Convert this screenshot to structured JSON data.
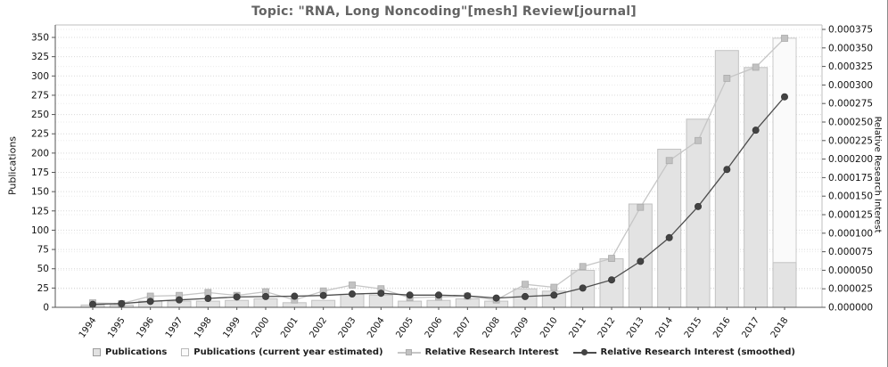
{
  "title": "Topic: \"RNA, Long Noncoding\"[mesh] Review[journal]",
  "axes": {
    "left_title": "Publications",
    "right_title": "Relative Research Interest"
  },
  "legend": {
    "publications_label": "Publications",
    "estimated_label": "Publications (current year estimated)",
    "rri_label": "Relative Research Interest",
    "rri_smoothed_label": "Relative Research Interest (smoothed)"
  },
  "colors": {
    "title_text": "#636363",
    "bar_fill": "#e3e3e3",
    "bar_stroke": "#c2c2c2",
    "estimated_bar_fill": "#fafafa",
    "estimated_bar_stroke": "#c9c9c9",
    "raw_line": "#c6c6c6",
    "raw_marker": "#c2c2c2",
    "smoothed_line": "#4d4d4d",
    "smoothed_marker": "#434343",
    "grid_left": "#d9d9d9",
    "grid_right": "#ebebeb",
    "axis_dark": "#555555",
    "axis_light": "#bfbfbf",
    "tick_text": "#111111"
  },
  "chart_data": {
    "type": "bar",
    "title": "Topic: \"RNA, Long Noncoding\"[mesh] Review[journal]",
    "categories": [
      "1994",
      "1995",
      "1996",
      "1997",
      "1998",
      "1999",
      "2000",
      "2001",
      "2002",
      "2003",
      "2004",
      "2005",
      "2006",
      "2007",
      "2008",
      "2009",
      "2010",
      "2011",
      "2012",
      "2013",
      "2014",
      "2015",
      "2016",
      "2017",
      "2018"
    ],
    "series": [
      {
        "name": "Publications",
        "type": "bar",
        "axis": "left",
        "values": [
          3,
          3,
          8,
          8,
          8,
          9,
          11,
          6,
          9,
          17,
          16,
          8,
          9,
          11,
          8,
          24,
          21,
          48,
          63,
          134,
          205,
          244,
          333,
          311,
          349
        ],
        "last_year_estimated": true,
        "last_year_actual_to_date": 58
      },
      {
        "name": "Relative Research Interest",
        "type": "line",
        "axis": "right",
        "marker": "square",
        "values": [
          6e-06,
          5e-06,
          1.5e-05,
          1.6e-05,
          2e-05,
          1.6e-05,
          2.1e-05,
          1e-05,
          2.2e-05,
          3e-05,
          2.5e-05,
          1.3e-05,
          1.4e-05,
          1.5e-05,
          1e-05,
          3.1e-05,
          2.7e-05,
          5.5e-05,
          6.6e-05,
          0.000135,
          0.000198,
          0.000225,
          0.000309,
          0.000324,
          0.000363
        ]
      },
      {
        "name": "Relative Research Interest (smoothed)",
        "type": "line",
        "axis": "right",
        "marker": "circle",
        "values": [
          4e-06,
          5e-06,
          8e-06,
          1e-05,
          1.2e-05,
          1.4e-05,
          1.45e-05,
          1.5e-05,
          1.6e-05,
          1.8e-05,
          1.9e-05,
          1.65e-05,
          1.65e-05,
          1.55e-05,
          1.25e-05,
          1.45e-05,
          1.65e-05,
          2.6e-05,
          3.7e-05,
          6.2e-05,
          9.4e-05,
          0.000136,
          0.000186,
          0.000239,
          0.000284
        ]
      }
    ],
    "left_axis": {
      "label": "Publications",
      "min": 0,
      "max": 350,
      "tick_step": 25
    },
    "right_axis": {
      "label": "Relative Research Interest",
      "min": 0,
      "max": 0.000375,
      "tick_step": 2.5e-05,
      "decimals": 6
    },
    "grid": true,
    "legend_position": "bottom"
  }
}
